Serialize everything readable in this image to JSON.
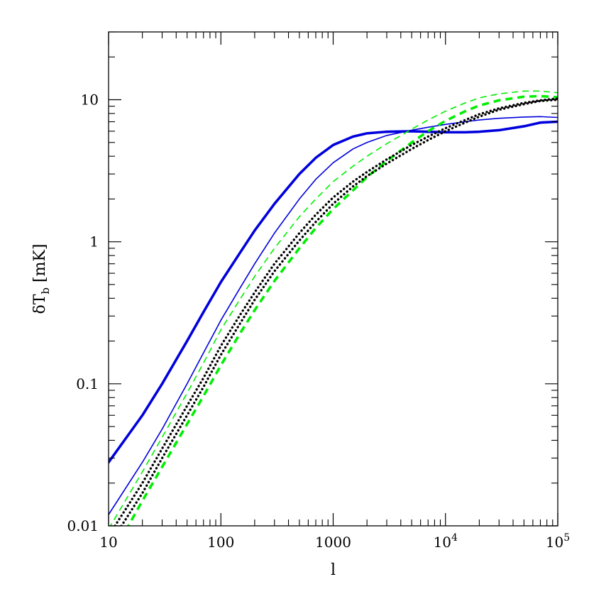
{
  "chart_data": {
    "type": "line",
    "title": "",
    "xlabel": "l",
    "ylabel": {
      "prefix": "δT",
      "subscript": "b",
      "suffix": " [mK]"
    },
    "xscale": "log",
    "yscale": "log",
    "xlim": [
      10,
      100000
    ],
    "ylim": [
      0.01,
      30
    ],
    "grid": false,
    "legend": "none",
    "x_ticks": [
      {
        "value": 10,
        "label": "10"
      },
      {
        "value": 100,
        "label": "100"
      },
      {
        "value": 1000,
        "label": "1000"
      },
      {
        "value": 10000,
        "label": "10",
        "sup": "4"
      },
      {
        "value": 100000,
        "label": "10",
        "sup": "5"
      }
    ],
    "y_ticks": [
      {
        "value": 0.01,
        "label": "0.01"
      },
      {
        "value": 0.1,
        "label": "0.1"
      },
      {
        "value": 1,
        "label": "1"
      },
      {
        "value": 10,
        "label": "10"
      }
    ],
    "series": [
      {
        "color": "#0000dd",
        "style": "solid",
        "weight": "thick",
        "x": [
          10,
          20,
          30,
          50,
          70,
          100,
          150,
          200,
          300,
          500,
          700,
          1000,
          1500,
          2000,
          3000,
          5000,
          7000,
          10000,
          15000,
          20000,
          30000,
          50000,
          70000,
          100000
        ],
        "y": [
          0.028,
          0.06,
          0.1,
          0.2,
          0.32,
          0.52,
          0.85,
          1.2,
          1.85,
          3.0,
          3.9,
          4.8,
          5.5,
          5.8,
          5.95,
          6.0,
          5.95,
          5.9,
          5.9,
          5.95,
          6.1,
          6.5,
          6.9,
          7.0
        ]
      },
      {
        "color": "#0000dd",
        "style": "solid",
        "weight": "thin",
        "x": [
          10,
          20,
          30,
          50,
          70,
          100,
          150,
          200,
          300,
          500,
          700,
          1000,
          1500,
          2000,
          3000,
          5000,
          7000,
          10000,
          15000,
          20000,
          30000,
          50000,
          70000,
          100000
        ],
        "y": [
          0.012,
          0.028,
          0.048,
          0.1,
          0.165,
          0.28,
          0.48,
          0.7,
          1.15,
          2.0,
          2.75,
          3.6,
          4.5,
          5.0,
          5.6,
          6.1,
          6.4,
          6.7,
          7.0,
          7.2,
          7.4,
          7.55,
          7.6,
          7.5
        ]
      },
      {
        "color": "#00ee00",
        "style": "dashed",
        "weight": "thin",
        "x": [
          10,
          20,
          30,
          50,
          70,
          100,
          150,
          200,
          300,
          500,
          700,
          1000,
          1500,
          2000,
          3000,
          5000,
          7000,
          10000,
          15000,
          20000,
          30000,
          50000,
          70000,
          100000
        ],
        "y": [
          0.0095,
          0.024,
          0.042,
          0.086,
          0.14,
          0.24,
          0.4,
          0.57,
          0.9,
          1.5,
          2.0,
          2.65,
          3.4,
          4.0,
          4.9,
          6.2,
          7.2,
          8.3,
          9.5,
          10.3,
          11.0,
          11.5,
          11.5,
          11.2
        ]
      },
      {
        "color": "#00ee00",
        "style": "dashed",
        "weight": "thick",
        "x": [
          10,
          15,
          20,
          30,
          50,
          70,
          100,
          150,
          200,
          300,
          500,
          700,
          1000,
          1500,
          2000,
          3000,
          5000,
          7000,
          10000,
          15000,
          20000,
          30000,
          50000,
          70000,
          100000
        ],
        "y": [
          0.0055,
          0.01,
          0.015,
          0.026,
          0.052,
          0.082,
          0.135,
          0.23,
          0.33,
          0.53,
          0.9,
          1.25,
          1.7,
          2.3,
          2.85,
          3.7,
          5.0,
          6.0,
          7.1,
          8.3,
          9.1,
          9.9,
          10.5,
          10.6,
          10.4
        ]
      },
      {
        "color": "#000000",
        "style": "dotted",
        "weight": "thick",
        "x": [
          10,
          20,
          30,
          50,
          70,
          100,
          150,
          200,
          300,
          500,
          700,
          1000,
          1500,
          2000,
          3000,
          5000,
          7000,
          10000,
          15000,
          20000,
          30000,
          50000,
          70000,
          100000
        ],
        "y": [
          0.0085,
          0.02,
          0.035,
          0.07,
          0.11,
          0.185,
          0.31,
          0.44,
          0.7,
          1.15,
          1.55,
          2.05,
          2.65,
          3.1,
          3.8,
          4.8,
          5.5,
          6.3,
          7.2,
          7.9,
          8.7,
          9.5,
          9.9,
          10.2
        ]
      },
      {
        "color": "#000000",
        "style": "dotted",
        "weight": "thick",
        "x": [
          10,
          20,
          30,
          50,
          70,
          100,
          150,
          200,
          300,
          500,
          700,
          1000,
          1500,
          2000,
          3000,
          5000,
          7000,
          10000,
          15000,
          20000,
          30000,
          50000,
          70000,
          100000
        ],
        "y": [
          0.0072,
          0.017,
          0.03,
          0.06,
          0.095,
          0.16,
          0.27,
          0.39,
          0.62,
          1.02,
          1.38,
          1.85,
          2.45,
          2.9,
          3.55,
          4.5,
          5.2,
          6.0,
          6.9,
          7.6,
          8.5,
          9.3,
          9.8,
          10.0
        ]
      }
    ]
  }
}
